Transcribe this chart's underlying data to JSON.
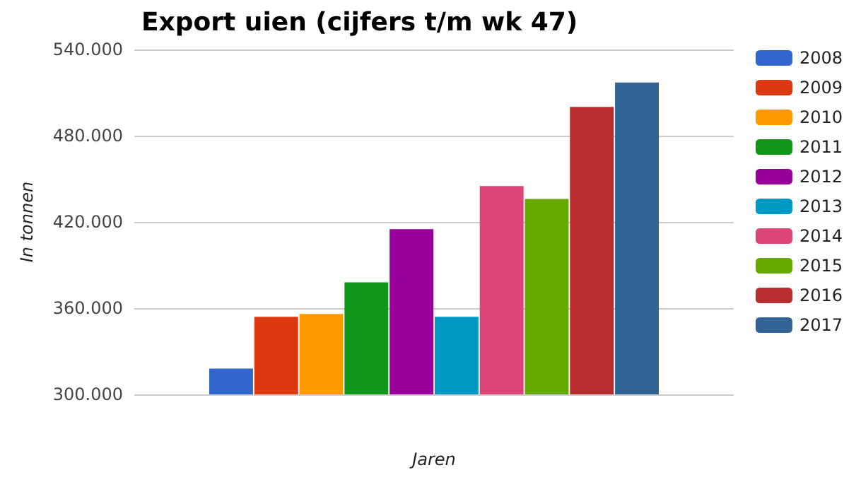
{
  "chart_data": {
    "type": "bar",
    "title": "Export uien (cijfers t/m wk 47)",
    "xlabel": "Jaren",
    "ylabel": "In tonnen",
    "categories": [
      null
    ],
    "series": [
      {
        "name": "2008",
        "color": "#3366cc",
        "values": [
          318000
        ]
      },
      {
        "name": "2009",
        "color": "#dc3912",
        "values": [
          354000
        ]
      },
      {
        "name": "2010",
        "color": "#ff9900",
        "values": [
          356000
        ]
      },
      {
        "name": "2011",
        "color": "#109618",
        "values": [
          378000
        ]
      },
      {
        "name": "2012",
        "color": "#990099",
        "values": [
          415000
        ]
      },
      {
        "name": "2013",
        "color": "#0099c6",
        "values": [
          354000
        ]
      },
      {
        "name": "2014",
        "color": "#dd4477",
        "values": [
          445000
        ]
      },
      {
        "name": "2015",
        "color": "#66aa00",
        "values": [
          436000
        ]
      },
      {
        "name": "2016",
        "color": "#b82e2e",
        "values": [
          500000
        ]
      },
      {
        "name": "2017",
        "color": "#316395",
        "values": [
          517000
        ]
      }
    ],
    "ylim": [
      300000,
      540000
    ],
    "yticks": [
      {
        "value": 300000,
        "label": "300.000"
      },
      {
        "value": 360000,
        "label": "360.000"
      },
      {
        "value": 420000,
        "label": "420.000"
      },
      {
        "value": 480000,
        "label": "480.000"
      },
      {
        "value": 540000,
        "label": "540.000"
      }
    ],
    "grid": "y",
    "legend": "right"
  }
}
